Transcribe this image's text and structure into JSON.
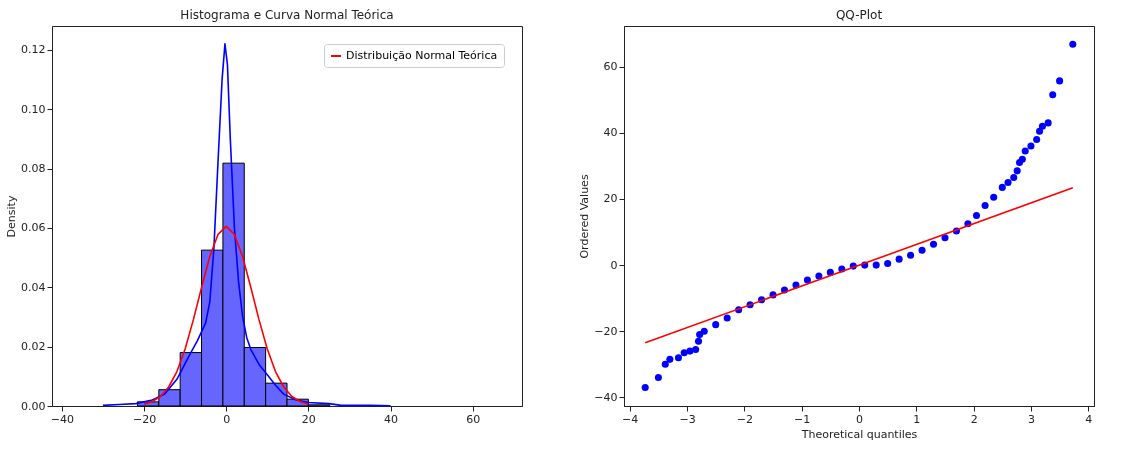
{
  "chart_data": [
    {
      "type": "histogram",
      "title": "Histograma e Curva Normal Teórica",
      "ylabel": "Density",
      "bins": [
        -37.2,
        -32.0,
        -26.8,
        -21.6,
        -16.4,
        -11.2,
        -6.0,
        -0.8,
        4.4,
        9.6,
        14.8,
        20.0,
        25.2,
        30.4,
        35.6,
        40.8,
        46.0,
        51.2,
        56.4,
        61.6,
        66.8
      ],
      "values": [
        0,
        0,
        0,
        0.0014,
        0.0055,
        0.018,
        0.0525,
        0.0818,
        0.0197,
        0.0077,
        0.0023,
        0.0004,
        0,
        0,
        0,
        0,
        0,
        0,
        0,
        0
      ],
      "color": "#6666ff",
      "series": [
        {
          "type": "line",
          "color": "#0000ff",
          "line_style": "solid",
          "marker": "none",
          "x": [
            -30,
            -26,
            -22,
            -18,
            -15,
            -12,
            -9,
            -7,
            -5,
            -4,
            -3,
            -2,
            -1,
            -0.3,
            0.3,
            1,
            2,
            3,
            4,
            5,
            6,
            8,
            10,
            12,
            14,
            17,
            20,
            25,
            28,
            35,
            40
          ],
          "values": [
            0.0002,
            0.0005,
            0.0008,
            0.002,
            0.004,
            0.009,
            0.017,
            0.022,
            0.028,
            0.035,
            0.053,
            0.082,
            0.11,
            0.122,
            0.115,
            0.09,
            0.06,
            0.042,
            0.03,
            0.023,
            0.019,
            0.014,
            0.0105,
            0.007,
            0.004,
            0.002,
            0.0012,
            0.0008,
            0.0002,
            0.0002,
            0.0001
          ]
        },
        {
          "type": "line",
          "name": "Distribuição Normal Teórica",
          "color": "#ff0000",
          "line_style": "solid",
          "marker": "none",
          "x": [
            -20,
            -18,
            -16,
            -14,
            -12,
            -10,
            -8,
            -6,
            -4,
            -2,
            0,
            2,
            4,
            6,
            8,
            10,
            12,
            14,
            16,
            18,
            20
          ],
          "values": [
            0.0006,
            0.0015,
            0.0032,
            0.0064,
            0.0116,
            0.0192,
            0.029,
            0.0399,
            0.0503,
            0.0578,
            0.0605,
            0.0578,
            0.0503,
            0.0399,
            0.029,
            0.0192,
            0.0116,
            0.0064,
            0.0032,
            0.0015,
            0.0006
          ]
        }
      ],
      "xlim": [
        -42.4,
        72.0
      ],
      "xticks": [
        -40,
        -20,
        0,
        20,
        40,
        60
      ],
      "ylim": [
        0,
        0.128
      ],
      "yticks": [
        {
          "value": 0,
          "label": "0.00"
        },
        {
          "value": 0.02,
          "label": "0.02"
        },
        {
          "value": 0.04,
          "label": "0.04"
        },
        {
          "value": 0.06,
          "label": "0.06"
        },
        {
          "value": 0.08,
          "label": "0.08"
        },
        {
          "value": 0.1,
          "label": "0.10"
        },
        {
          "value": 0.12,
          "label": "0.12"
        }
      ],
      "legend": "top right",
      "grid": false
    },
    {
      "type": "scatter",
      "title": "QQ-Plot",
      "xlabel": "Theoretical quantiles",
      "ylabel": "Ordered Values",
      "series": [
        {
          "type": "scatter",
          "color": "#0000ff",
          "marker": "circle",
          "x": [
            -3.73,
            -3.5,
            -3.38,
            -3.3,
            -3.15,
            -3.05,
            -2.95,
            -2.85,
            -2.8,
            -2.78,
            -2.7,
            -2.5,
            -2.3,
            -2.1,
            -1.9,
            -1.7,
            -1.5,
            -1.3,
            -1.1,
            -0.9,
            -0.7,
            -0.5,
            -0.3,
            -0.1,
            0.1,
            0.3,
            0.5,
            0.7,
            0.9,
            1.1,
            1.3,
            1.5,
            1.7,
            1.9,
            2.05,
            2.2,
            2.35,
            2.5,
            2.6,
            2.7,
            2.76,
            2.8,
            2.85,
            2.9,
            3.0,
            3.1,
            3.15,
            3.2,
            3.3,
            3.38,
            3.5,
            3.73
          ],
          "values": [
            -37,
            -34,
            -30,
            -28.5,
            -28,
            -26.5,
            -26,
            -25.5,
            -23,
            -21,
            -20,
            -18,
            -16,
            -13.5,
            -12,
            -10.5,
            -9,
            -7.5,
            -6,
            -4.5,
            -3.3,
            -2.2,
            -1.2,
            -0.3,
            0,
            0,
            0.5,
            1.8,
            3,
            4.5,
            6.3,
            8.3,
            10.3,
            12.5,
            15,
            18,
            20.5,
            23.5,
            25,
            26.5,
            28.5,
            31,
            32,
            34.5,
            36,
            38,
            40.5,
            42,
            43,
            51.5,
            55.7,
            66.8
          ]
        },
        {
          "type": "line",
          "color": "#ff0000",
          "line_style": "solid",
          "marker": "none",
          "x": [
            -3.73,
            3.73
          ],
          "values": [
            -23.5,
            23.4
          ]
        }
      ],
      "xlim": [
        -4.1,
        4.1
      ],
      "xticks": [
        -4,
        -3,
        -2,
        -1,
        0,
        1,
        2,
        3,
        4
      ],
      "ylim": [
        -42.6,
        72.3
      ],
      "yticks": [
        -40,
        -20,
        0,
        20,
        40,
        60
      ],
      "legend": false,
      "grid": false
    }
  ]
}
